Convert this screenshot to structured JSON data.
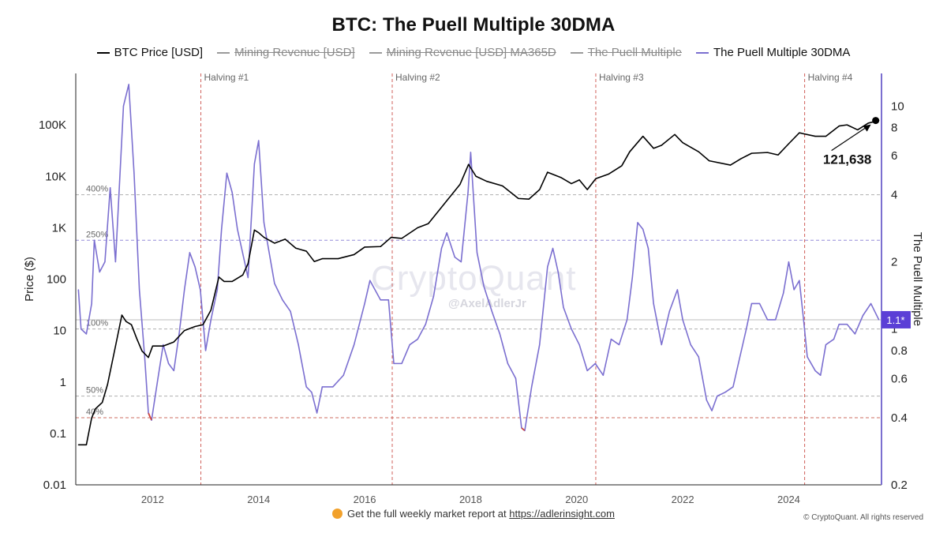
{
  "chart_data": {
    "type": "line",
    "title": "BTC: The Puell Multiple 30DMA",
    "legend": [
      {
        "label": "BTC Price [USD]",
        "color": "#000000",
        "active": true
      },
      {
        "label": "Mining Revenue [USD]",
        "color": "#9a9a9a",
        "active": false
      },
      {
        "label": "Mining Revenue [USD] MA365D",
        "color": "#9a9a9a",
        "active": false
      },
      {
        "label": "The Puell Multiple",
        "color": "#9a9a9a",
        "active": false
      },
      {
        "label": "The Puell Multiple 30DMA",
        "color": "#7b6fd0",
        "active": true
      }
    ],
    "legend_position": "top-center",
    "x_axis": {
      "type": "year",
      "range": [
        2010.55,
        2025.75
      ],
      "ticks": [
        "2012",
        "2014",
        "2016",
        "2018",
        "2020",
        "2022",
        "2024"
      ]
    },
    "y_left": {
      "label": "Price ($)",
      "scale": "log",
      "range": [
        0.01,
        1000000
      ],
      "ticks": [
        "0.01",
        "0.1",
        "1",
        "10",
        "100",
        "1K",
        "10K",
        "100K"
      ]
    },
    "y_right": {
      "label": "The Puell Multiple",
      "scale": "log",
      "range": [
        0.2,
        14
      ],
      "ticks": [
        "0.2",
        "0.4",
        "0.6",
        "0.8",
        "1",
        "2",
        "4",
        "6",
        "8",
        "10"
      ]
    },
    "reference_lines": [
      {
        "label": "400%",
        "value": 4,
        "color": "#9a9a9a"
      },
      {
        "label": "250%",
        "value": 2.5,
        "color": "#7b6fd0"
      },
      {
        "label": "100%",
        "value": 1,
        "color": "#9a9a9a"
      },
      {
        "label": "50%",
        "value": 0.5,
        "color": "#9a9a9a"
      },
      {
        "label": "40%",
        "value": 0.4,
        "color": "#c04a3c"
      }
    ],
    "halvings": [
      {
        "label": "Halving #1",
        "x": 2012.91
      },
      {
        "label": "Halving #2",
        "x": 2016.52
      },
      {
        "label": "Halving #3",
        "x": 2020.36
      },
      {
        "label": "Halving #4",
        "x": 2024.3
      }
    ],
    "annotation": {
      "text": "121,638",
      "x": 2025.7,
      "y": 121638
    },
    "current_badge": {
      "text": "1.1*",
      "value": 1.1,
      "color": "#5b3fd6"
    },
    "series": [
      {
        "name": "BTC Price [USD]",
        "axis": "left",
        "color": "#000000",
        "points": [
          [
            2010.6,
            0.06
          ],
          [
            2010.75,
            0.06
          ],
          [
            2010.85,
            0.2
          ],
          [
            2010.92,
            0.3
          ],
          [
            2011.05,
            0.4
          ],
          [
            2011.15,
            0.9
          ],
          [
            2011.3,
            5
          ],
          [
            2011.42,
            20
          ],
          [
            2011.5,
            15
          ],
          [
            2011.6,
            13
          ],
          [
            2011.7,
            7
          ],
          [
            2011.8,
            4
          ],
          [
            2011.92,
            3
          ],
          [
            2012.0,
            5
          ],
          [
            2012.2,
            5
          ],
          [
            2012.4,
            6
          ],
          [
            2012.6,
            10
          ],
          [
            2012.8,
            12
          ],
          [
            2012.95,
            13
          ],
          [
            2013.1,
            25
          ],
          [
            2013.25,
            110
          ],
          [
            2013.35,
            90
          ],
          [
            2013.5,
            90
          ],
          [
            2013.7,
            120
          ],
          [
            2013.8,
            200
          ],
          [
            2013.92,
            900
          ],
          [
            2014.0,
            800
          ],
          [
            2014.1,
            650
          ],
          [
            2014.3,
            500
          ],
          [
            2014.5,
            600
          ],
          [
            2014.7,
            400
          ],
          [
            2014.9,
            350
          ],
          [
            2015.05,
            220
          ],
          [
            2015.2,
            250
          ],
          [
            2015.5,
            250
          ],
          [
            2015.8,
            300
          ],
          [
            2016.0,
            420
          ],
          [
            2016.3,
            430
          ],
          [
            2016.5,
            650
          ],
          [
            2016.7,
            620
          ],
          [
            2017.0,
            1000
          ],
          [
            2017.2,
            1200
          ],
          [
            2017.45,
            2500
          ],
          [
            2017.65,
            4500
          ],
          [
            2017.8,
            7000
          ],
          [
            2017.96,
            17000
          ],
          [
            2018.1,
            10000
          ],
          [
            2018.3,
            8000
          ],
          [
            2018.6,
            6500
          ],
          [
            2018.9,
            3700
          ],
          [
            2019.1,
            3600
          ],
          [
            2019.3,
            5500
          ],
          [
            2019.45,
            12000
          ],
          [
            2019.7,
            9500
          ],
          [
            2019.9,
            7200
          ],
          [
            2020.05,
            8500
          ],
          [
            2020.2,
            5500
          ],
          [
            2020.36,
            9000
          ],
          [
            2020.6,
            11000
          ],
          [
            2020.85,
            16000
          ],
          [
            2021.0,
            30000
          ],
          [
            2021.25,
            60000
          ],
          [
            2021.45,
            35000
          ],
          [
            2021.6,
            40000
          ],
          [
            2021.85,
            65000
          ],
          [
            2022.0,
            45000
          ],
          [
            2022.3,
            30000
          ],
          [
            2022.5,
            20000
          ],
          [
            2022.9,
            16500
          ],
          [
            2023.1,
            22000
          ],
          [
            2023.3,
            28000
          ],
          [
            2023.6,
            29000
          ],
          [
            2023.8,
            26000
          ],
          [
            2024.0,
            43000
          ],
          [
            2024.2,
            70000
          ],
          [
            2024.5,
            60000
          ],
          [
            2024.7,
            60000
          ],
          [
            2024.95,
            95000
          ],
          [
            2025.1,
            100000
          ],
          [
            2025.3,
            80000
          ],
          [
            2025.5,
            108000
          ],
          [
            2025.7,
            121638
          ]
        ]
      },
      {
        "name": "The Puell Multiple 30DMA",
        "axis": "right",
        "color": "#7b6fd0",
        "low_color": "#d0443a",
        "low_threshold": 0.4,
        "points": [
          [
            2010.6,
            1.5
          ],
          [
            2010.65,
            1.0
          ],
          [
            2010.75,
            0.95
          ],
          [
            2010.85,
            1.3
          ],
          [
            2010.9,
            2.5
          ],
          [
            2011.0,
            1.8
          ],
          [
            2011.1,
            2.0
          ],
          [
            2011.2,
            4.3
          ],
          [
            2011.3,
            2.0
          ],
          [
            2011.45,
            10
          ],
          [
            2011.55,
            12.5
          ],
          [
            2011.65,
            5
          ],
          [
            2011.75,
            1.5
          ],
          [
            2011.85,
            0.75
          ],
          [
            2011.92,
            0.42
          ],
          [
            2011.98,
            0.39
          ],
          [
            2012.1,
            0.6
          ],
          [
            2012.2,
            0.85
          ],
          [
            2012.3,
            0.7
          ],
          [
            2012.4,
            0.65
          ],
          [
            2012.5,
            0.95
          ],
          [
            2012.6,
            1.5
          ],
          [
            2012.7,
            2.2
          ],
          [
            2012.8,
            1.9
          ],
          [
            2012.9,
            1.5
          ],
          [
            2013.0,
            0.8
          ],
          [
            2013.1,
            1.1
          ],
          [
            2013.22,
            1.5
          ],
          [
            2013.3,
            2.8
          ],
          [
            2013.4,
            5
          ],
          [
            2013.5,
            4.1
          ],
          [
            2013.6,
            2.8
          ],
          [
            2013.8,
            1.7
          ],
          [
            2013.92,
            5.5
          ],
          [
            2014.0,
            7
          ],
          [
            2014.1,
            3
          ],
          [
            2014.3,
            1.6
          ],
          [
            2014.45,
            1.35
          ],
          [
            2014.6,
            1.2
          ],
          [
            2014.75,
            0.85
          ],
          [
            2014.9,
            0.55
          ],
          [
            2015.0,
            0.52
          ],
          [
            2015.1,
            0.42
          ],
          [
            2015.2,
            0.55
          ],
          [
            2015.4,
            0.55
          ],
          [
            2015.6,
            0.62
          ],
          [
            2015.8,
            0.85
          ],
          [
            2016.0,
            1.3
          ],
          [
            2016.1,
            1.65
          ],
          [
            2016.3,
            1.35
          ],
          [
            2016.45,
            1.35
          ],
          [
            2016.55,
            0.7
          ],
          [
            2016.7,
            0.7
          ],
          [
            2016.85,
            0.85
          ],
          [
            2017.0,
            0.9
          ],
          [
            2017.15,
            1.05
          ],
          [
            2017.3,
            1.4
          ],
          [
            2017.45,
            2.3
          ],
          [
            2017.55,
            2.7
          ],
          [
            2017.7,
            2.1
          ],
          [
            2017.82,
            2.0
          ],
          [
            2017.95,
            4.1
          ],
          [
            2018.0,
            6.2
          ],
          [
            2018.12,
            2.2
          ],
          [
            2018.25,
            1.55
          ],
          [
            2018.4,
            1.2
          ],
          [
            2018.55,
            0.95
          ],
          [
            2018.7,
            0.7
          ],
          [
            2018.85,
            0.6
          ],
          [
            2018.96,
            0.36
          ],
          [
            2019.02,
            0.35
          ],
          [
            2019.15,
            0.55
          ],
          [
            2019.3,
            0.85
          ],
          [
            2019.45,
            1.9
          ],
          [
            2019.55,
            2.3
          ],
          [
            2019.65,
            1.8
          ],
          [
            2019.75,
            1.25
          ],
          [
            2019.9,
            1.0
          ],
          [
            2020.05,
            0.85
          ],
          [
            2020.2,
            0.65
          ],
          [
            2020.35,
            0.7
          ],
          [
            2020.5,
            0.62
          ],
          [
            2020.65,
            0.9
          ],
          [
            2020.8,
            0.85
          ],
          [
            2020.95,
            1.1
          ],
          [
            2021.05,
            1.7
          ],
          [
            2021.15,
            3.0
          ],
          [
            2021.25,
            2.8
          ],
          [
            2021.35,
            2.3
          ],
          [
            2021.45,
            1.3
          ],
          [
            2021.6,
            0.85
          ],
          [
            2021.75,
            1.2
          ],
          [
            2021.9,
            1.5
          ],
          [
            2022.0,
            1.1
          ],
          [
            2022.15,
            0.85
          ],
          [
            2022.3,
            0.75
          ],
          [
            2022.45,
            0.48
          ],
          [
            2022.55,
            0.43
          ],
          [
            2022.65,
            0.5
          ],
          [
            2022.8,
            0.52
          ],
          [
            2022.95,
            0.55
          ],
          [
            2023.05,
            0.7
          ],
          [
            2023.2,
            1.0
          ],
          [
            2023.3,
            1.3
          ],
          [
            2023.45,
            1.3
          ],
          [
            2023.6,
            1.1
          ],
          [
            2023.75,
            1.1
          ],
          [
            2023.9,
            1.45
          ],
          [
            2024.0,
            2.0
          ],
          [
            2024.1,
            1.5
          ],
          [
            2024.2,
            1.65
          ],
          [
            2024.28,
            1.1
          ],
          [
            2024.35,
            0.75
          ],
          [
            2024.5,
            0.65
          ],
          [
            2024.6,
            0.62
          ],
          [
            2024.7,
            0.85
          ],
          [
            2024.85,
            0.9
          ],
          [
            2024.95,
            1.05
          ],
          [
            2025.1,
            1.05
          ],
          [
            2025.25,
            0.95
          ],
          [
            2025.4,
            1.15
          ],
          [
            2025.55,
            1.3
          ],
          [
            2025.7,
            1.1
          ]
        ]
      }
    ]
  },
  "watermark": {
    "brand": "CryptoQuant",
    "handle": "@AxelAdlerJr"
  },
  "footer": {
    "text": "Get the full weekly market report at ",
    "url": "https://adlerinsight.com"
  },
  "copyright": "© CryptoQuant. All rights reserved"
}
